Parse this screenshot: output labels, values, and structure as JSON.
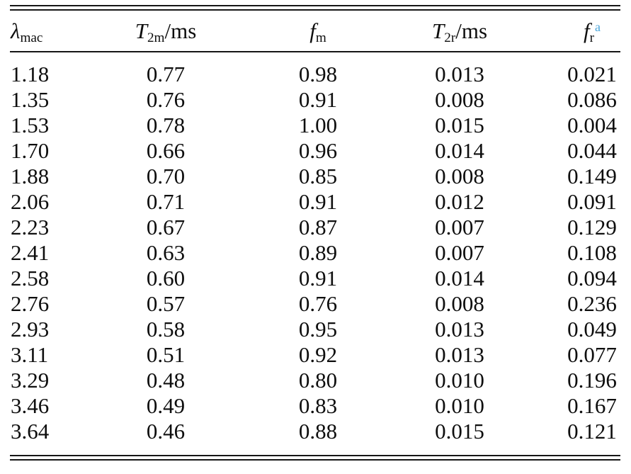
{
  "accent_color": "#4aa5da",
  "table": {
    "columns": [
      {
        "symbol": "λ",
        "subscript": "mac",
        "suffix": "",
        "superscript": ""
      },
      {
        "symbol": "T",
        "subscript": "2m",
        "suffix": "/ms",
        "superscript": ""
      },
      {
        "symbol": "f",
        "subscript": "m",
        "suffix": "",
        "superscript": ""
      },
      {
        "symbol": "T",
        "subscript": "2r",
        "suffix": "/ms",
        "superscript": ""
      },
      {
        "symbol": "f",
        "subscript": "r",
        "suffix": "",
        "superscript": "a"
      }
    ],
    "rows": [
      [
        "1.18",
        "0.77",
        "0.98",
        "0.013",
        "0.021"
      ],
      [
        "1.35",
        "0.76",
        "0.91",
        "0.008",
        "0.086"
      ],
      [
        "1.53",
        "0.78",
        "1.00",
        "0.015",
        "0.004"
      ],
      [
        "1.70",
        "0.66",
        "0.96",
        "0.014",
        "0.044"
      ],
      [
        "1.88",
        "0.70",
        "0.85",
        "0.008",
        "0.149"
      ],
      [
        "2.06",
        "0.71",
        "0.91",
        "0.012",
        "0.091"
      ],
      [
        "2.23",
        "0.67",
        "0.87",
        "0.007",
        "0.129"
      ],
      [
        "2.41",
        "0.63",
        "0.89",
        "0.007",
        "0.108"
      ],
      [
        "2.58",
        "0.60",
        "0.91",
        "0.014",
        "0.094"
      ],
      [
        "2.76",
        "0.57",
        "0.76",
        "0.008",
        "0.236"
      ],
      [
        "2.93",
        "0.58",
        "0.95",
        "0.013",
        "0.049"
      ],
      [
        "3.11",
        "0.51",
        "0.92",
        "0.013",
        "0.077"
      ],
      [
        "3.29",
        "0.48",
        "0.80",
        "0.010",
        "0.196"
      ],
      [
        "3.46",
        "0.49",
        "0.83",
        "0.010",
        "0.167"
      ],
      [
        "3.64",
        "0.46",
        "0.88",
        "0.015",
        "0.121"
      ]
    ]
  }
}
